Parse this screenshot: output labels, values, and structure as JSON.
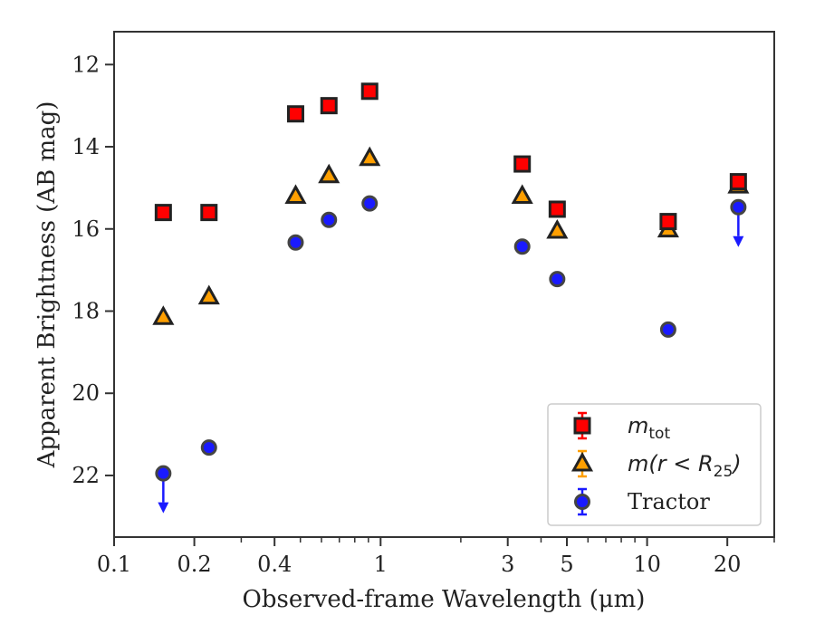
{
  "chart_data": {
    "type": "scatter",
    "xlabel": "Observed-frame Wavelength (μm)",
    "ylabel": "Apparent Brightness (AB mag)",
    "x_scale": "log",
    "xlim": [
      0.1,
      30
    ],
    "ylim": [
      23.5,
      11.2
    ],
    "y_inverted": true,
    "x_ticks": [
      0.1,
      0.2,
      0.4,
      1,
      3,
      5,
      10,
      20
    ],
    "x_tick_labels": [
      "0.1",
      "0.2",
      "0.4",
      "1",
      "3",
      "5",
      "10",
      "20"
    ],
    "y_ticks": [
      12,
      14,
      16,
      18,
      20,
      22
    ],
    "y_tick_labels": [
      "12",
      "14",
      "16",
      "18",
      "20",
      "22"
    ],
    "grid": false,
    "legend_position": "bottom-right",
    "series": [
      {
        "name_base": "m",
        "name_sub": "tot",
        "marker": "square",
        "color": "#ff0000",
        "edge_color": "#222222",
        "x": [
          0.153,
          0.227,
          0.48,
          0.64,
          0.91,
          3.4,
          4.6,
          12.0,
          22.0
        ],
        "y": [
          15.6,
          15.6,
          13.2,
          13.0,
          12.65,
          14.42,
          15.52,
          15.82,
          14.85
        ],
        "upper_limit": [
          false,
          false,
          false,
          false,
          false,
          false,
          false,
          false,
          false
        ]
      },
      {
        "name_base": "m(r < R",
        "name_sub": "25",
        "name_close": ")",
        "marker": "triangle",
        "color": "#ff9f00",
        "edge_color": "#222222",
        "x": [
          0.153,
          0.227,
          0.48,
          0.64,
          0.91,
          3.4,
          4.6,
          12.0,
          22.0
        ],
        "y": [
          18.15,
          17.65,
          15.2,
          14.7,
          14.28,
          15.2,
          16.05,
          16.02,
          14.95
        ],
        "upper_limit": [
          false,
          false,
          false,
          false,
          false,
          false,
          false,
          false,
          false
        ]
      },
      {
        "name": "Tractor",
        "marker": "circle",
        "color": "#1a1aff",
        "edge_color": "#444444",
        "x": [
          0.153,
          0.227,
          0.48,
          0.64,
          0.91,
          3.4,
          4.6,
          12.0,
          22.0
        ],
        "y": [
          21.95,
          21.32,
          16.33,
          15.78,
          15.38,
          16.43,
          17.22,
          18.45,
          15.47
        ],
        "upper_limit": [
          true,
          false,
          false,
          false,
          false,
          false,
          false,
          false,
          true
        ]
      }
    ]
  }
}
